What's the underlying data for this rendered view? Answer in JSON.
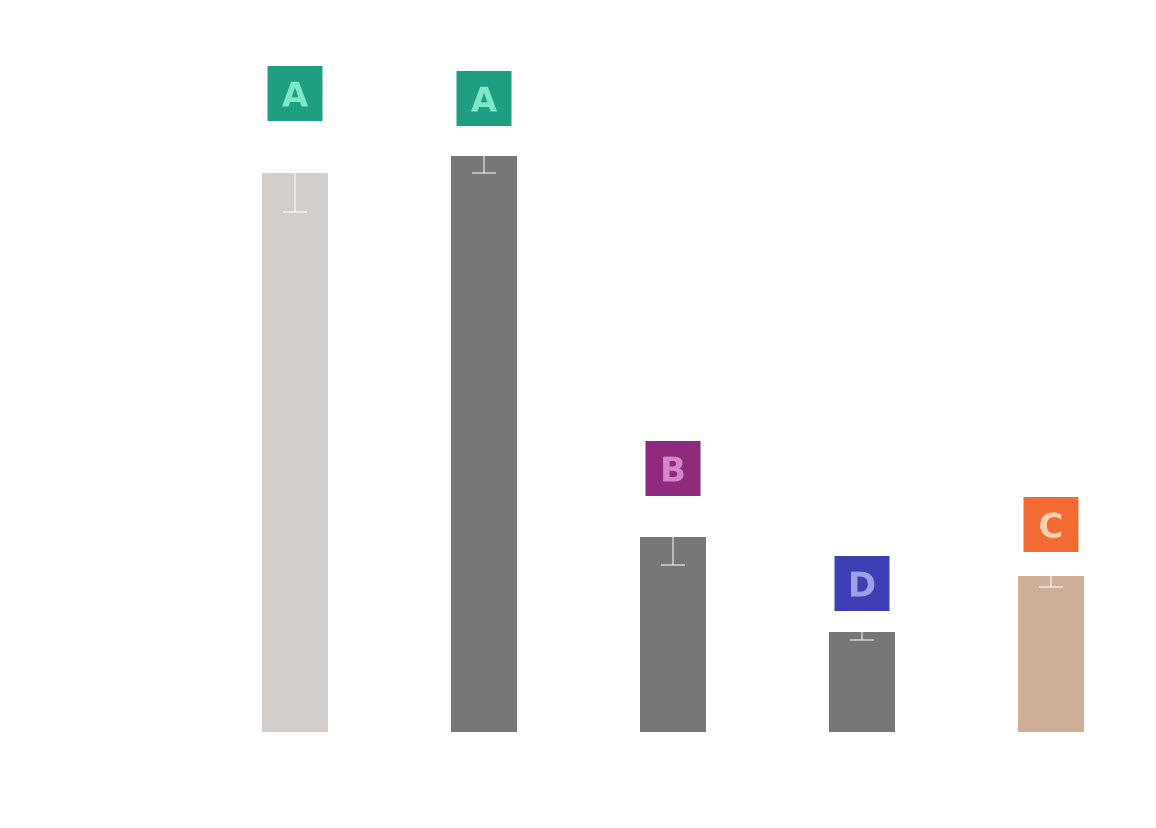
{
  "chart_data": {
    "type": "bar",
    "values": [
      559,
      576,
      195,
      100,
      156
    ],
    "errors": [
      39,
      17,
      28,
      8,
      11
    ],
    "colors": [
      "#d3ceca",
      "#777777",
      "#777777",
      "#777777",
      "#cfae97"
    ],
    "error_color": "#ffffff",
    "group_labels": [
      "A",
      "A",
      "B",
      "D",
      "C"
    ],
    "group_label_colors": [
      "#1f9e82",
      "#1f9e82",
      "#8f2a7e",
      "#3f3fb5",
      "#f26b33"
    ],
    "group_label_text_colors": [
      "#7de8c8",
      "#7de8c8",
      "#d486c8",
      "#a0a0e8",
      "#ffd0b0"
    ],
    "ylim": [
      0,
      600
    ]
  }
}
